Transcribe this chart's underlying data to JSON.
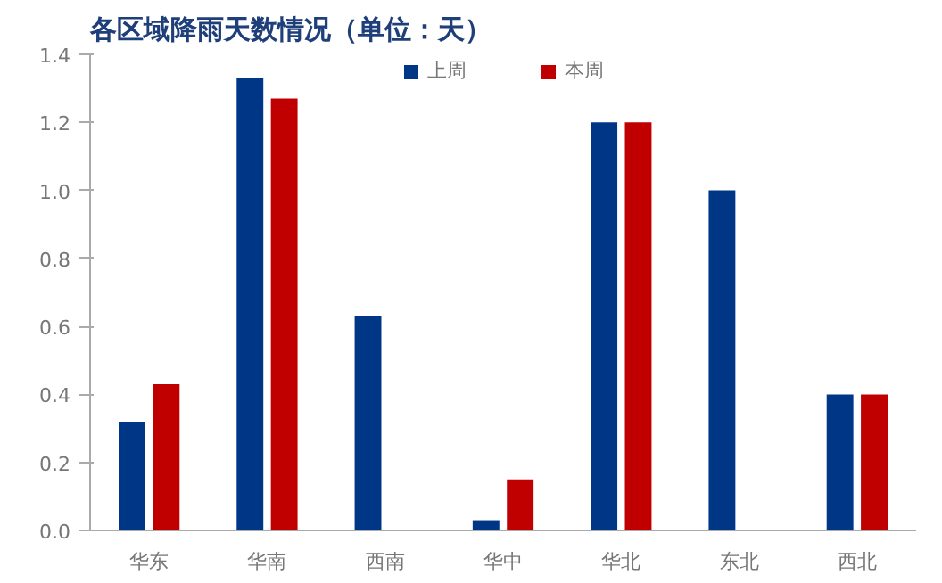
{
  "chart_data": {
    "type": "bar",
    "title": "各区域降雨天数情况（单位：天）",
    "categories": [
      "华东",
      "华南",
      "西南",
      "华中",
      "华北",
      "东北",
      "西北"
    ],
    "series": [
      {
        "name": "上周",
        "color": "#003686",
        "values": [
          0.32,
          1.33,
          0.63,
          0.03,
          1.2,
          1.0,
          0.4
        ]
      },
      {
        "name": "本周",
        "color": "#c00000",
        "values": [
          0.43,
          1.27,
          0,
          0.15,
          1.2,
          0,
          0.4
        ]
      }
    ],
    "ylim": [
      0,
      1.4
    ],
    "yticks": [
      {
        "value": 0,
        "label": "0.0"
      },
      0.2,
      0.4,
      0.6,
      0.8,
      {
        "value": 1,
        "label": "1.0"
      },
      1.2,
      1.4
    ],
    "grid": false,
    "legend": "top"
  }
}
